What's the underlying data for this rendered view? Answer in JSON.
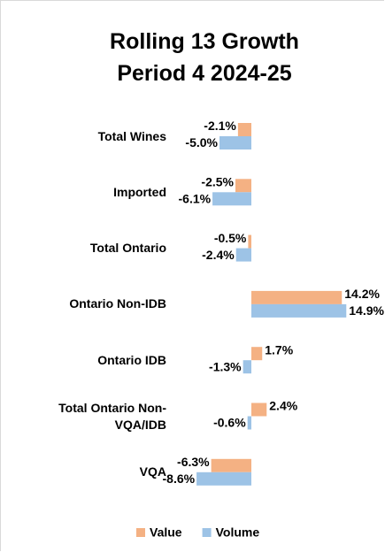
{
  "chart_data": {
    "type": "bar",
    "orientation": "horizontal",
    "title": "Rolling 13 Growth Period 4 2024-25",
    "categories": [
      "Total Wines",
      "Imported",
      "Total Ontario",
      "Ontario Non-IDB",
      "Ontario IDB",
      "Total Ontario Non-VQA/IDB",
      "VQA"
    ],
    "series": [
      {
        "name": "Value",
        "color": "#f4b183",
        "values": [
          -2.1,
          -2.5,
          -0.5,
          14.2,
          1.7,
          2.4,
          -6.3
        ],
        "value_labels": [
          "-2.1%",
          "-2.5%",
          "-0.5%",
          "14.2%",
          "1.7%",
          "2.4%",
          "-6.3%"
        ]
      },
      {
        "name": "Volume",
        "color": "#9dc3e6",
        "values": [
          -5.0,
          -6.1,
          -2.4,
          14.9,
          -1.3,
          -0.6,
          -8.6
        ],
        "value_labels": [
          "-5.0%",
          "-6.1%",
          "-2.4%",
          "14.9%",
          "-1.3%",
          "-0.6%",
          "-8.6%"
        ]
      }
    ],
    "legend": "bottom"
  }
}
